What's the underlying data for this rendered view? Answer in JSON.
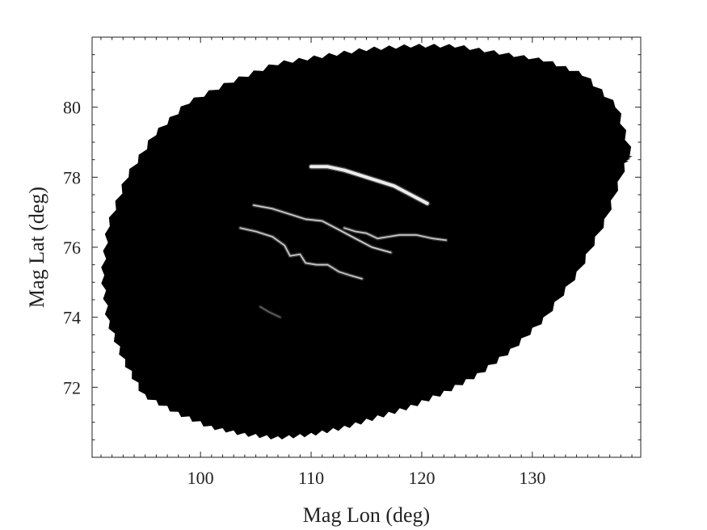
{
  "chart_data": {
    "type": "heatmap",
    "title": "",
    "xlabel": "Mag Lon (deg)",
    "ylabel": "Mag Lat (deg)",
    "xlim": [
      90.2,
      139.8
    ],
    "ylim": [
      70.0,
      82.0
    ],
    "x_ticks": [
      100,
      110,
      120,
      130
    ],
    "y_ticks": [
      72,
      74,
      76,
      78,
      80
    ],
    "grid": false,
    "colors": {
      "background": "#000000",
      "arcs": "#ffffff",
      "axis": "#222222"
    },
    "field_of_view_outline": [
      [
        95.0,
        71.8
      ],
      [
        98.0,
        71.3
      ],
      [
        101.0,
        70.9
      ],
      [
        104.0,
        70.7
      ],
      [
        107.0,
        70.6
      ],
      [
        110.0,
        70.7
      ],
      [
        113.0,
        70.9
      ],
      [
        116.0,
        71.2
      ],
      [
        119.0,
        71.5
      ],
      [
        122.0,
        71.9
      ],
      [
        125.0,
        72.4
      ],
      [
        128.0,
        73.1
      ],
      [
        131.0,
        74.0
      ],
      [
        134.0,
        75.3
      ],
      [
        136.5,
        76.8
      ],
      [
        138.3,
        78.4
      ],
      [
        138.8,
        78.6
      ],
      [
        137.5,
        80.0
      ],
      [
        134.5,
        80.9
      ],
      [
        131.0,
        81.3
      ],
      [
        127.0,
        81.5
      ],
      [
        123.0,
        81.7
      ],
      [
        119.0,
        81.7
      ],
      [
        115.0,
        81.6
      ],
      [
        111.0,
        81.4
      ],
      [
        107.0,
        81.2
      ],
      [
        103.0,
        80.7
      ],
      [
        99.0,
        80.1
      ],
      [
        96.0,
        79.2
      ],
      [
        93.5,
        78.0
      ],
      [
        91.8,
        76.6
      ],
      [
        91.3,
        75.2
      ],
      [
        91.8,
        73.9
      ],
      [
        93.2,
        72.8
      ]
    ],
    "series": [
      {
        "points": [
          [
            110.0,
            78.3
          ],
          [
            111.5,
            78.3
          ],
          [
            113.0,
            78.2
          ],
          [
            114.5,
            78.05
          ],
          [
            116.0,
            77.9
          ],
          [
            117.5,
            77.75
          ],
          [
            119.0,
            77.5
          ],
          [
            120.5,
            77.25
          ]
        ],
        "intensity": 1.0
      },
      {
        "points": [
          [
            104.8,
            77.2
          ],
          [
            106.5,
            77.1
          ],
          [
            108.0,
            76.95
          ],
          [
            109.5,
            76.8
          ],
          [
            111.0,
            76.75
          ],
          [
            112.5,
            76.5
          ],
          [
            114.0,
            76.25
          ],
          [
            115.5,
            76.0
          ],
          [
            117.2,
            75.85
          ]
        ],
        "intensity": 0.85
      },
      {
        "points": [
          [
            113.0,
            76.55
          ],
          [
            114.0,
            76.45
          ],
          [
            115.0,
            76.4
          ],
          [
            116.0,
            76.25
          ],
          [
            117.0,
            76.3
          ],
          [
            118.0,
            76.35
          ],
          [
            119.5,
            76.35
          ],
          [
            121.0,
            76.25
          ],
          [
            122.2,
            76.2
          ]
        ],
        "intensity": 0.8
      },
      {
        "points": [
          [
            103.6,
            76.55
          ],
          [
            105.0,
            76.45
          ],
          [
            106.5,
            76.3
          ],
          [
            107.6,
            76.05
          ],
          [
            108.1,
            75.75
          ],
          [
            109.0,
            75.8
          ],
          [
            109.5,
            75.55
          ],
          [
            110.5,
            75.5
          ],
          [
            111.5,
            75.5
          ],
          [
            112.5,
            75.3
          ],
          [
            113.5,
            75.2
          ],
          [
            114.6,
            75.1
          ]
        ],
        "intensity": 0.8
      },
      {
        "points": [
          [
            105.4,
            74.3
          ],
          [
            106.2,
            74.15
          ],
          [
            107.2,
            74.0
          ]
        ],
        "intensity": 0.35
      }
    ]
  }
}
